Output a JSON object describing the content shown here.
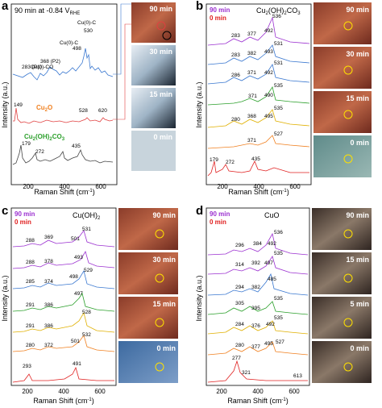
{
  "figure": {
    "panel_a": {
      "letter": "a",
      "title": "90 min at -0.84 V",
      "title_sub": "RHE",
      "x_label": "Raman Shift (cm",
      "x_label_sup": "-1",
      "x_label_end": ")",
      "y_label": "Intensity (a.u.)",
      "x_ticks": [
        "200",
        "400",
        "600"
      ],
      "annotations": [
        {
          "text": "Cu(0)-C",
          "color": "#e03030"
        },
        {
          "text": "530",
          "color": "#000000"
        },
        {
          "text": "Cu(0)-C",
          "color": "#e03030"
        },
        {
          "text": "498",
          "color": "#000000"
        },
        {
          "text": "Cu(0)-CO",
          "color": "#e03030"
        },
        {
          "text": "368 (P2)",
          "color": "#000000"
        },
        {
          "text": "283 (P1)",
          "color": "#000000"
        }
      ],
      "species": [
        {
          "name": "Cu",
          "sub": "2",
          "tail": "O",
          "color": "#f08020"
        },
        {
          "name": "Cu",
          "sub": "2",
          "tail": "(OH)",
          "sub2": "2",
          "tail2": "CO",
          "sub3": "3",
          "color": "#2ca02c"
        }
      ],
      "peak_labels": [
        "149",
        "528",
        "620",
        "179",
        "272",
        "435"
      ],
      "image_labels": [
        "90 min",
        "30 min",
        "15 min",
        "0 min"
      ]
    },
    "panel_b": {
      "letter": "b",
      "title": "Cu",
      "title_parts": [
        "2",
        "(OH)",
        "2",
        "CO",
        "3"
      ],
      "legend": [
        {
          "text": "90 min",
          "color": "#9b30d0"
        },
        {
          "text": "0 min",
          "color": "#e02020"
        }
      ],
      "y_label": "Intensity (a.u.)",
      "x_label": "Raman Shift (cm",
      "x_label_sup": "-1",
      "x_label_end": ")",
      "x_ticks": [
        "200",
        "400",
        "600"
      ],
      "peak_labels": [
        [
          "536",
          "283",
          "377",
          "492"
        ],
        [
          "531",
          "283",
          "382",
          "493"
        ],
        [
          "531",
          "286",
          "371",
          "492"
        ],
        [
          "535",
          "371",
          "490"
        ],
        [
          "535",
          "280",
          "368",
          "495"
        ],
        [
          "527",
          "371"
        ],
        [
          "179",
          "272",
          "435"
        ]
      ],
      "image_labels": [
        "90 min",
        "30 min",
        "15 min",
        "0 min"
      ]
    },
    "panel_c": {
      "letter": "c",
      "title": "Cu(OH)",
      "title_sub": "2",
      "legend": [
        {
          "text": "90 min",
          "color": "#9b30d0"
        },
        {
          "text": "0 min",
          "color": "#e02020"
        }
      ],
      "y_label": "Intensity (a.u.)",
      "x_label": "Raman Shift (cm",
      "x_label_sup": "-1",
      "x_label_end": ")",
      "x_ticks": [
        "200",
        "400",
        "600"
      ],
      "peak_labels": [
        [
          "531",
          "288",
          "369",
          "501"
        ],
        [
          "493",
          "288",
          "378"
        ],
        [
          "529",
          "285",
          "374",
          "498"
        ],
        [
          "497",
          "291",
          "386"
        ],
        [
          "528",
          "291",
          "386"
        ],
        [
          "532",
          "280",
          "372",
          "501"
        ],
        [
          "293",
          "491"
        ]
      ],
      "image_labels": [
        "90 min",
        "30 min",
        "15 min",
        "0 min"
      ]
    },
    "panel_d": {
      "letter": "d",
      "title": "CuO",
      "legend": [
        {
          "text": "90 min",
          "color": "#9b30d0"
        },
        {
          "text": "0 min",
          "color": "#e02020"
        }
      ],
      "y_label": "Intensity (a.u.)",
      "x_label": "Raman Shift (cm",
      "x_label_sup": "-1",
      "x_label_end": ")",
      "x_ticks": [
        "200",
        "400",
        "600"
      ],
      "peak_labels": [
        [
          "536",
          "296",
          "384",
          "492"
        ],
        [
          "535",
          "314",
          "392",
          "497"
        ],
        [
          "485",
          "294",
          "382"
        ],
        [
          "535",
          "305",
          "395"
        ],
        [
          "535",
          "284",
          "376",
          "492"
        ],
        [
          "527",
          "280",
          "377",
          "495"
        ],
        [
          "277",
          "321",
          "613"
        ]
      ],
      "image_labels": [
        "90 min",
        "15 min",
        "5 min",
        "0 min"
      ]
    }
  }
}
